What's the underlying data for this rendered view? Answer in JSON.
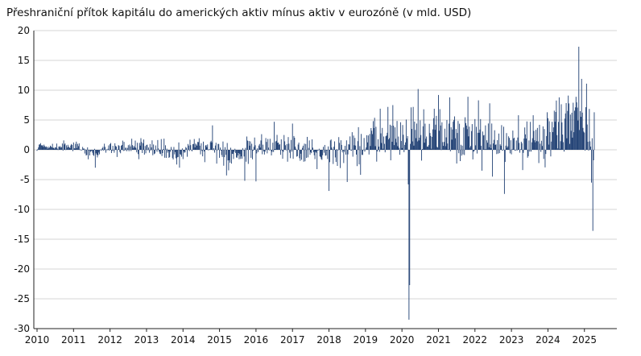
{
  "chart_data": {
    "type": "bar",
    "title": "Přeshraniční přítok kapitálu do amerických aktiv mínus aktiv v eurozóně (v mld. USD)",
    "xlabel": "",
    "ylabel": "",
    "ylim": [
      -30,
      20
    ],
    "yticks": [
      20,
      15,
      10,
      5,
      0,
      -5,
      -10,
      -15,
      -20,
      -25,
      -30
    ],
    "xlim": [
      2010.0,
      2025.8
    ],
    "xticks": [
      "2010",
      "2011",
      "2012",
      "2013",
      "2014",
      "2015",
      "2016",
      "2017",
      "2018",
      "2019",
      "2020",
      "2021",
      "2022",
      "2023",
      "2024",
      "2025"
    ],
    "grid": "horizontal",
    "bar_color": "#1f3f73",
    "frequency": "weekly",
    "start_year": 2010.0,
    "anchors": [
      [
        2010.0,
        0.5
      ],
      [
        2010.5,
        0.4
      ],
      [
        2011.0,
        0.6
      ],
      [
        2011.5,
        -0.6
      ],
      [
        2012.0,
        0.3
      ],
      [
        2012.5,
        0.2
      ],
      [
        2013.0,
        0.4
      ],
      [
        2013.5,
        -0.4
      ],
      [
        2014.0,
        0.0
      ],
      [
        2014.5,
        0.4
      ],
      [
        2015.0,
        -0.3
      ],
      [
        2015.5,
        -1.0
      ],
      [
        2016.0,
        0.2
      ],
      [
        2016.5,
        0.9
      ],
      [
        2017.0,
        0.6
      ],
      [
        2017.5,
        -0.3
      ],
      [
        2018.0,
        -0.6
      ],
      [
        2018.5,
        0.2
      ],
      [
        2019.0,
        0.8
      ],
      [
        2019.5,
        1.6
      ],
      [
        2020.0,
        2.2
      ],
      [
        2020.5,
        2.6
      ],
      [
        2021.0,
        2.9
      ],
      [
        2021.5,
        2.4
      ],
      [
        2022.0,
        1.8
      ],
      [
        2022.5,
        0.8
      ],
      [
        2023.0,
        1.4
      ],
      [
        2023.5,
        1.2
      ],
      [
        2024.0,
        2.6
      ],
      [
        2024.5,
        4.0
      ],
      [
        2024.8,
        5.6
      ],
      [
        2025.1,
        3.6
      ],
      [
        2025.28,
        2.0
      ]
    ],
    "noise_amplitude": [
      [
        2010.0,
        0.4
      ],
      [
        2012.0,
        0.8
      ],
      [
        2015.0,
        1.4
      ],
      [
        2017.0,
        1.4
      ],
      [
        2018.0,
        1.7
      ],
      [
        2019.0,
        2.0
      ],
      [
        2020.0,
        2.6
      ],
      [
        2021.0,
        2.6
      ],
      [
        2022.0,
        2.4
      ],
      [
        2023.0,
        2.0
      ],
      [
        2024.0,
        2.4
      ],
      [
        2025.0,
        2.8
      ],
      [
        2025.3,
        2.8
      ]
    ],
    "spikes": [
      [
        2011.6,
        -3.0
      ],
      [
        2012.2,
        -1.2
      ],
      [
        2013.4,
        1.8
      ],
      [
        2013.9,
        -3.0
      ],
      [
        2014.2,
        1.7
      ],
      [
        2014.8,
        4.1
      ],
      [
        2015.2,
        -4.3
      ],
      [
        2015.7,
        -5.2
      ],
      [
        2016.0,
        -5.3
      ],
      [
        2016.5,
        4.7
      ],
      [
        2017.0,
        4.4
      ],
      [
        2017.3,
        -2.0
      ],
      [
        2018.0,
        -6.9
      ],
      [
        2018.5,
        -5.4
      ],
      [
        2018.8,
        3.8
      ],
      [
        2018.87,
        -4.2
      ],
      [
        2019.4,
        6.9
      ],
      [
        2019.62,
        7.2
      ],
      [
        2019.75,
        7.5
      ],
      [
        2020.17,
        -5.8
      ],
      [
        2020.19,
        -28.5
      ],
      [
        2020.22,
        -22.7
      ],
      [
        2020.3,
        7.2
      ],
      [
        2020.45,
        10.2
      ],
      [
        2020.6,
        6.8
      ],
      [
        2021.0,
        9.2
      ],
      [
        2021.3,
        8.8
      ],
      [
        2021.5,
        -2.3
      ],
      [
        2021.8,
        8.9
      ],
      [
        2022.1,
        8.3
      ],
      [
        2022.2,
        -3.5
      ],
      [
        2022.4,
        7.8
      ],
      [
        2022.48,
        -4.5
      ],
      [
        2022.8,
        -7.4
      ],
      [
        2023.2,
        5.8
      ],
      [
        2023.3,
        -3.4
      ],
      [
        2023.6,
        5.8
      ],
      [
        2023.98,
        6.3
      ],
      [
        2024.3,
        8.8
      ],
      [
        2024.55,
        9.1
      ],
      [
        2024.7,
        7.9
      ],
      [
        2024.85,
        17.3
      ],
      [
        2024.92,
        11.9
      ],
      [
        2025.05,
        11.1
      ],
      [
        2025.2,
        -5.5
      ],
      [
        2025.24,
        -13.6
      ],
      [
        2025.28,
        6.3
      ]
    ]
  }
}
